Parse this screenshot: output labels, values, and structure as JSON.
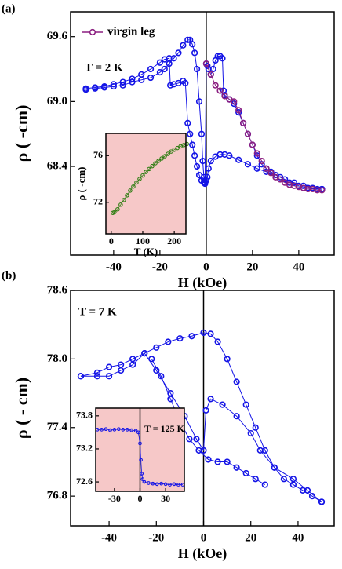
{
  "chart_data": [
    {
      "type": "scatter",
      "panel_label": "(a)",
      "x_label": "H (kOe)",
      "y_label": "ρ (    -cm)",
      "annotation": "T = 2 K",
      "xlim": [
        -58.6,
        55.3
      ],
      "ylim": [
        67.58,
        69.83
      ],
      "xticks": [
        -40,
        -20,
        0,
        20,
        40
      ],
      "yticks": [
        {
          "value": 68.4,
          "label": "68.4"
        },
        {
          "value": 69,
          "label": "69.0"
        },
        {
          "value": 69.6,
          "label": "69.6"
        }
      ],
      "zero_line": true,
      "legend": "top-left",
      "series": [
        {
          "color": "#1414e6",
          "x": [
            50,
            46,
            42,
            38,
            34,
            30,
            26,
            22,
            18,
            14,
            10,
            8,
            6,
            4,
            2,
            1,
            0.5,
            0,
            -0.5,
            -1,
            -1.5,
            -2,
            -3,
            -4,
            -5,
            -6,
            -7,
            -8,
            -10,
            -12,
            -14,
            -16,
            -18,
            -20,
            -24,
            -28,
            -32,
            -36,
            -40,
            -44,
            -48,
            -52
          ],
          "y": [
            68.19,
            68.2,
            68.22,
            68.25,
            68.28,
            68.32,
            68.35,
            68.38,
            68.42,
            68.46,
            68.5,
            68.51,
            68.51,
            68.49,
            68.45,
            68.38,
            68.3,
            68.27,
            68.25,
            68.3,
            68.45,
            68.7,
            69.0,
            69.3,
            69.45,
            69.53,
            69.57,
            69.57,
            69.52,
            69.45,
            69.4,
            69.35,
            69.3,
            69.27,
            69.22,
            69.2,
            69.18,
            69.15,
            69.14,
            69.13,
            69.12,
            69.11
          ]
        },
        {
          "color": "#1414e6",
          "x": [
            -52,
            -48,
            -44,
            -40,
            -36,
            -32,
            -28,
            -24,
            -20,
            -18,
            -16,
            -15.5,
            -14,
            -12,
            -10,
            -9,
            -8,
            -7,
            -6,
            -5,
            -4,
            -3,
            -2,
            -1,
            -0.5,
            0,
            0.5,
            1,
            2,
            3,
            4,
            5,
            6,
            7,
            7.5,
            8,
            10,
            12,
            14,
            16,
            18,
            20,
            22,
            24,
            26,
            28,
            32,
            36,
            40,
            44,
            48,
            50
          ],
          "y": [
            69.12,
            69.13,
            69.14,
            69.16,
            69.18,
            69.21,
            69.25,
            69.3,
            69.36,
            69.39,
            69.4,
            69.15,
            69.16,
            69.17,
            69.19,
            69.17,
            68.8,
            68.7,
            68.6,
            68.5,
            68.4,
            68.32,
            68.27,
            68.25,
            68.24,
            69.35,
            69.33,
            69.3,
            69.25,
            69.3,
            69.38,
            69.42,
            69.42,
            69.4,
            69.1,
            69.06,
            69.02,
            68.98,
            68.9,
            68.8,
            68.7,
            68.6,
            68.5,
            68.42,
            68.38,
            68.35,
            68.3,
            68.25,
            68.22,
            68.2,
            68.19,
            68.19
          ]
        },
        {
          "name": "virgin leg",
          "color": "#8b1f80",
          "x": [
            0,
            2,
            4,
            6,
            8,
            10,
            12,
            14,
            16,
            18,
            20,
            22,
            24,
            26,
            28,
            30,
            32,
            34,
            36,
            38,
            40,
            42,
            44,
            46,
            48,
            50
          ],
          "y": [
            69.35,
            69.25,
            69.15,
            69.1,
            69.05,
            69.02,
            69.0,
            68.92,
            68.8,
            68.7,
            68.6,
            68.52,
            68.45,
            68.38,
            68.34,
            68.3,
            68.28,
            68.25,
            68.23,
            68.22,
            68.21,
            68.2,
            68.19,
            68.19,
            68.18,
            68.18
          ]
        }
      ]
    },
    {
      "type": "scatter",
      "x_label": "T (K)",
      "y_label": "ρ (    -cm)",
      "background": "#f6c8c8",
      "xlim": [
        -17,
        237
      ],
      "ylim": [
        69.3,
        77.9
      ],
      "xticks": [
        0,
        100,
        200
      ],
      "yticks": [
        72,
        76
      ],
      "series": [
        {
          "color": "#2e7d12",
          "x": [
            5,
            10,
            20,
            30,
            40,
            50,
            60,
            70,
            80,
            90,
            100,
            110,
            120,
            130,
            140,
            150,
            160,
            170,
            180,
            190,
            200,
            210,
            220,
            230,
            240
          ],
          "y": [
            71.1,
            71.15,
            71.4,
            71.8,
            72.2,
            72.6,
            73.0,
            73.35,
            73.7,
            74.0,
            74.3,
            74.6,
            74.85,
            75.1,
            75.35,
            75.55,
            75.75,
            75.95,
            76.15,
            76.35,
            76.5,
            76.65,
            76.8,
            76.9,
            77.0
          ]
        }
      ]
    },
    {
      "type": "scatter",
      "panel_label": "(b)",
      "x_label": "H (kOe)",
      "y_label": "ρ (    - cm)",
      "annotation": "T = 7 K",
      "xlim": [
        -56.3,
        55.3
      ],
      "ylim": [
        76.54,
        78.6
      ],
      "xticks": [
        -40,
        -20,
        0,
        20,
        40
      ],
      "yticks": [
        76.8,
        77.4,
        {
          "value": 78,
          "label": "78.0"
        },
        78.6
      ],
      "zero_line": true,
      "series": [
        {
          "color": "#1414e6",
          "x": [
            -52,
            -45,
            -40,
            -35,
            -30,
            -25,
            -20,
            -15,
            -10,
            -5,
            0,
            3,
            6,
            10,
            14,
            18,
            22,
            26,
            30,
            34,
            38,
            42,
            46,
            50
          ],
          "y": [
            77.85,
            77.88,
            77.93,
            77.95,
            78.0,
            78.05,
            78.1,
            78.15,
            78.18,
            78.2,
            78.23,
            78.22,
            78.15,
            78.0,
            77.8,
            77.6,
            77.4,
            77.2,
            77.05,
            76.95,
            76.9,
            76.85,
            76.8,
            76.75
          ]
        },
        {
          "color": "#1414e6",
          "x": [
            50,
            44,
            38,
            30,
            24,
            20,
            14,
            8,
            3,
            1,
            0,
            -3,
            -8,
            -14,
            -20,
            -25,
            -30,
            -35,
            -40,
            -45,
            -52
          ],
          "y": [
            76.75,
            76.85,
            76.95,
            77.05,
            77.2,
            77.35,
            77.5,
            77.6,
            77.65,
            77.55,
            77.2,
            77.3,
            77.5,
            77.7,
            77.9,
            78.05,
            77.95,
            77.9,
            77.85,
            77.85,
            77.85
          ]
        },
        {
          "color": "#1414e6",
          "x": [
            -22,
            -18,
            -14,
            -10,
            -6,
            -2,
            2,
            6,
            10,
            14,
            18,
            22,
            26
          ],
          "y": [
            78.0,
            77.85,
            77.65,
            77.45,
            77.3,
            77.2,
            77.12,
            77.1,
            77.1,
            77.05,
            77.0,
            76.95,
            76.9
          ]
        }
      ]
    },
    {
      "type": "scatter",
      "annotation": "T = 125 K",
      "background": "#f6c8c8",
      "xlim": [
        -52,
        52
      ],
      "ylim": [
        72.43,
        73.94
      ],
      "xticks": [
        -30,
        0,
        30
      ],
      "yticks": [
        72.6,
        73.2,
        73.8
      ],
      "zero_line": true,
      "series": [
        {
          "color": "#1414e6",
          "x": [
            -50,
            -45,
            -40,
            -35,
            -30,
            -25,
            -20,
            -15,
            -10,
            -5,
            -2,
            0,
            1,
            2,
            3,
            5,
            10,
            15,
            20,
            25,
            30,
            35,
            40,
            45,
            50
          ],
          "y": [
            73.55,
            73.55,
            73.56,
            73.54,
            73.55,
            73.56,
            73.55,
            73.55,
            73.54,
            73.53,
            73.5,
            73.3,
            73.0,
            72.75,
            72.65,
            72.6,
            72.58,
            72.57,
            72.56,
            72.57,
            72.56,
            72.55,
            72.56,
            72.55,
            72.55
          ]
        }
      ]
    }
  ]
}
